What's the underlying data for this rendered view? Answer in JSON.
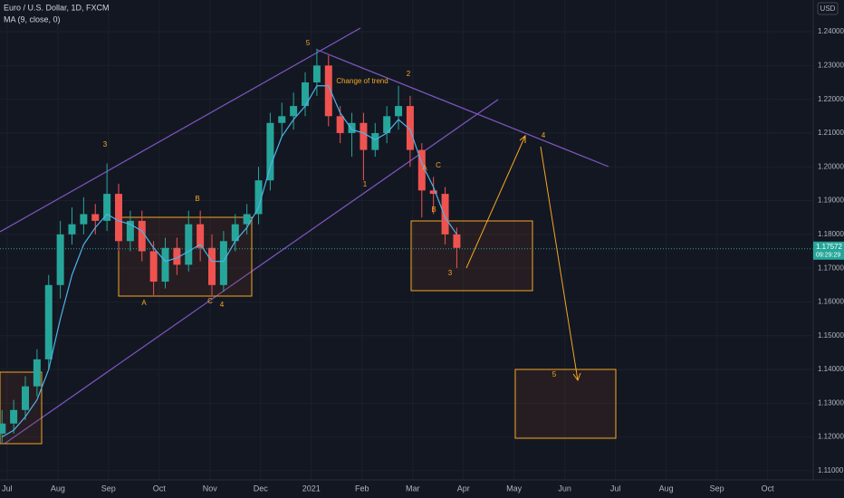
{
  "chart_data": {
    "type": "candlestick",
    "title": "Euro / U.S. Dollar, 1D, FXCM",
    "subtitle": "MA (9, close, 0)",
    "currency": "USD",
    "last_price": 1.17572,
    "countdown": "09:29:29",
    "x": [
      -0.1,
      0.13,
      0.36,
      0.59,
      0.82,
      1.05,
      1.28,
      1.51,
      1.74,
      1.97,
      2.2,
      2.43,
      2.66,
      2.89,
      3.12,
      3.35,
      3.58,
      3.81,
      4.04,
      4.27,
      4.5,
      4.73,
      4.96,
      5.19,
      5.42,
      5.65,
      5.88,
      6.11,
      6.34,
      6.57,
      6.8,
      7.03,
      7.26,
      7.49,
      7.72,
      7.95,
      8.18,
      8.41,
      8.64,
      8.87
    ],
    "open": [
      1.121,
      1.124,
      1.128,
      1.135,
      1.143,
      1.165,
      1.18,
      1.183,
      1.186,
      1.184,
      1.192,
      1.178,
      1.184,
      1.175,
      1.166,
      1.176,
      1.171,
      1.183,
      1.176,
      1.165,
      1.178,
      1.183,
      1.186,
      1.196,
      1.213,
      1.215,
      1.218,
      1.225,
      1.23,
      1.215,
      1.21,
      1.213,
      1.205,
      1.21,
      1.215,
      1.218,
      1.205,
      1.193,
      1.192,
      1.18
    ],
    "high": [
      1.128,
      1.131,
      1.138,
      1.146,
      1.168,
      1.184,
      1.188,
      1.191,
      1.189,
      1.201,
      1.195,
      1.187,
      1.187,
      1.178,
      1.179,
      1.179,
      1.187,
      1.187,
      1.18,
      1.181,
      1.186,
      1.189,
      1.2,
      1.216,
      1.219,
      1.222,
      1.228,
      1.235,
      1.233,
      1.218,
      1.216,
      1.216,
      1.213,
      1.218,
      1.224,
      1.221,
      1.207,
      1.197,
      1.194,
      1.182
    ],
    "low": [
      1.118,
      1.121,
      1.125,
      1.132,
      1.14,
      1.161,
      1.177,
      1.18,
      1.18,
      1.181,
      1.175,
      1.175,
      1.172,
      1.162,
      1.164,
      1.168,
      1.169,
      1.172,
      1.162,
      1.163,
      1.175,
      1.18,
      1.183,
      1.193,
      1.209,
      1.211,
      1.215,
      1.221,
      1.212,
      1.207,
      1.203,
      1.196,
      1.203,
      1.207,
      1.211,
      1.2,
      1.185,
      1.186,
      1.177,
      1.17
    ],
    "close": [
      1.124,
      1.128,
      1.135,
      1.143,
      1.165,
      1.18,
      1.183,
      1.186,
      1.184,
      1.192,
      1.178,
      1.184,
      1.175,
      1.166,
      1.176,
      1.171,
      1.183,
      1.176,
      1.165,
      1.178,
      1.183,
      1.186,
      1.196,
      1.213,
      1.215,
      1.218,
      1.225,
      1.23,
      1.215,
      1.21,
      1.213,
      1.205,
      1.21,
      1.215,
      1.218,
      1.205,
      1.193,
      1.192,
      1.18,
      1.176
    ],
    "up_color": "#26a69a",
    "down_color": "#ef5350",
    "ma": {
      "color": "#4fb3e8",
      "values": [
        1.12,
        1.122,
        1.126,
        1.131,
        1.14,
        1.155,
        1.168,
        1.177,
        1.182,
        1.186,
        1.184,
        1.183,
        1.181,
        1.176,
        1.172,
        1.173,
        1.175,
        1.177,
        1.172,
        1.172,
        1.178,
        1.182,
        1.188,
        1.2,
        1.209,
        1.214,
        1.218,
        1.224,
        1.224,
        1.216,
        1.211,
        1.21,
        1.208,
        1.21,
        1.214,
        1.211,
        1.201,
        1.194,
        1.185,
        1.18
      ]
    },
    "xlim": [
      -0.14,
      15.9
    ],
    "xticks": [
      {
        "value": 0,
        "label": "Jul"
      },
      {
        "value": 1,
        "label": "Aug"
      },
      {
        "value": 2,
        "label": "Sep"
      },
      {
        "value": 3,
        "label": "Oct"
      },
      {
        "value": 4,
        "label": "Nov"
      },
      {
        "value": 5,
        "label": "Dec"
      },
      {
        "value": 6,
        "label": "2021"
      },
      {
        "value": 7,
        "label": "Feb"
      },
      {
        "value": 8,
        "label": "Mar"
      },
      {
        "value": 9,
        "label": "Apr"
      },
      {
        "value": 10,
        "label": "May"
      },
      {
        "value": 11,
        "label": "Jun"
      },
      {
        "value": 12,
        "label": "Jul"
      },
      {
        "value": 13,
        "label": "Aug"
      },
      {
        "value": 14,
        "label": "Sep"
      },
      {
        "value": 15,
        "label": "Oct"
      }
    ],
    "ylim": [
      1.1073,
      1.2494
    ],
    "yticks": [
      {
        "value": 1.11,
        "label": "1.11000"
      },
      {
        "value": 1.12,
        "label": "1.12000"
      },
      {
        "value": 1.13,
        "label": "1.13000"
      },
      {
        "value": 1.14,
        "label": "1.14000"
      },
      {
        "value": 1.15,
        "label": "1.15000"
      },
      {
        "value": 1.16,
        "label": "1.16000"
      },
      {
        "value": 1.17,
        "label": "1.17000"
      },
      {
        "value": 1.18,
        "label": "1.18000"
      },
      {
        "value": 1.19,
        "label": "1.19000"
      },
      {
        "value": 1.2,
        "label": "1.20000"
      },
      {
        "value": 1.21,
        "label": "1.21000"
      },
      {
        "value": 1.22,
        "label": "1.22000"
      },
      {
        "value": 1.23,
        "label": "1.23000"
      },
      {
        "value": 1.24,
        "label": "1.24000"
      }
    ],
    "grid": true,
    "annotations": [
      "3",
      "B",
      "A",
      "C",
      "4",
      "5",
      "Change of trend",
      "2",
      "1",
      "A",
      "C",
      "B",
      "3",
      "4",
      "5"
    ]
  }
}
